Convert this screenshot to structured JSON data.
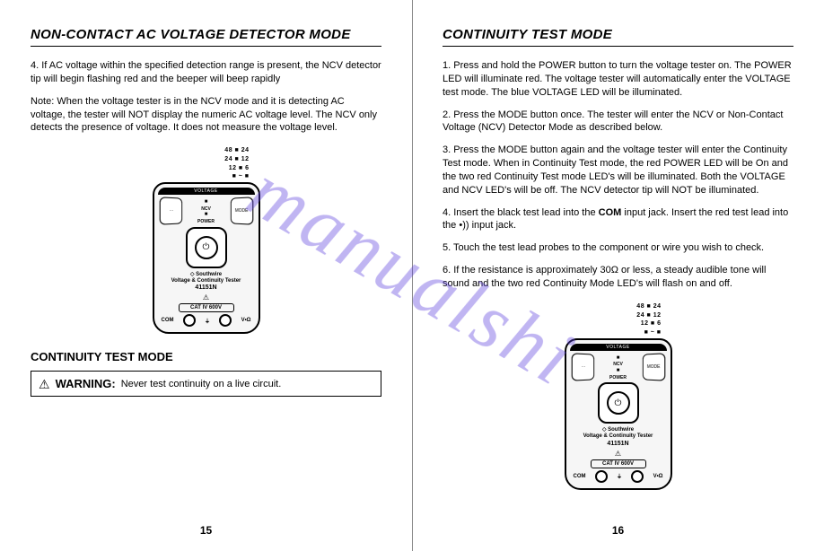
{
  "watermark": "manualshi",
  "left": {
    "heading": "NON-CONTACT AC VOLTAGE DETECTOR MODE",
    "para1": "4. If AC voltage within the specified detection range is present, the NCV detector tip will begin flashing red and the beeper will beep rapidly",
    "para2": "Note:  When the voltage tester is in the NCV mode and it is detecting AC voltage, the tester will NOT display the numeric AC voltage level.  The NCV only detects the presence of voltage.  It does not measure the voltage level.",
    "subheading": "CONTINUITY TEST MODE",
    "warning_label": "WARNING:",
    "warning_text": "Never test continuity on a live circuit.",
    "page_number": "15"
  },
  "right": {
    "heading": "CONTINUITY TEST MODE",
    "para1": "1. Press and hold the POWER button to turn the voltage tester on.  The POWER LED will illuminate red.  The voltage tester will automatically enter the VOLTAGE test mode.  The blue VOLTAGE LED will be illuminated.",
    "para2": "2. Press the MODE button once.  The tester will enter the NCV or Non-Contact Voltage (NCV) Detector Mode as described below.",
    "para3": "3. Press the MODE button again and the voltage tester will enter the Continuity Test mode.  When in Continuity Test mode, the red POWER LED will be On and the two red Continuity Test mode LED's will be illuminated.  Both the VOLTAGE and NCV LED's will be off.  The NCV detector tip will NOT be illuminated.",
    "para4_a": "4. Insert the black test lead into the ",
    "para4_bold": "COM",
    "para4_b": " input jack.  Insert the red test lead into the  •))  input jack.",
    "para5": "5. Touch the test lead probes to the component or wire you wish to check.",
    "para6": "6. If the resistance is approximately 30Ω or less, a steady audible tone will sound and the two red Continuity Mode LED's will flash on and off.",
    "page_number": "16"
  },
  "device": {
    "ind_row1": "48 ■ 24",
    "ind_row2": "24 ■ 12",
    "ind_row3": "12 ■ 6",
    "ind_row4": "■ ~   ■",
    "left_btn": "⋯",
    "right_btn": "MODE",
    "mid_line1": "■",
    "mid_line2": "NCV",
    "mid_line3": "■",
    "mid_line4": "POWER",
    "power_symbol": "⏻",
    "brand_line1": "◇ Southwire",
    "brand_line2": "Voltage & Continuity Tester",
    "brand_model": "41151N",
    "warn_symbol": "⚠",
    "cat_text": "CAT IV 600V",
    "jack_left": "COM",
    "jack_mid": "⏚",
    "jack_right": "V•Ω"
  },
  "colors": {
    "text": "#000000",
    "background": "#ffffff",
    "watermark": "rgba(90,60,220,0.38)",
    "divider": "#888888"
  }
}
